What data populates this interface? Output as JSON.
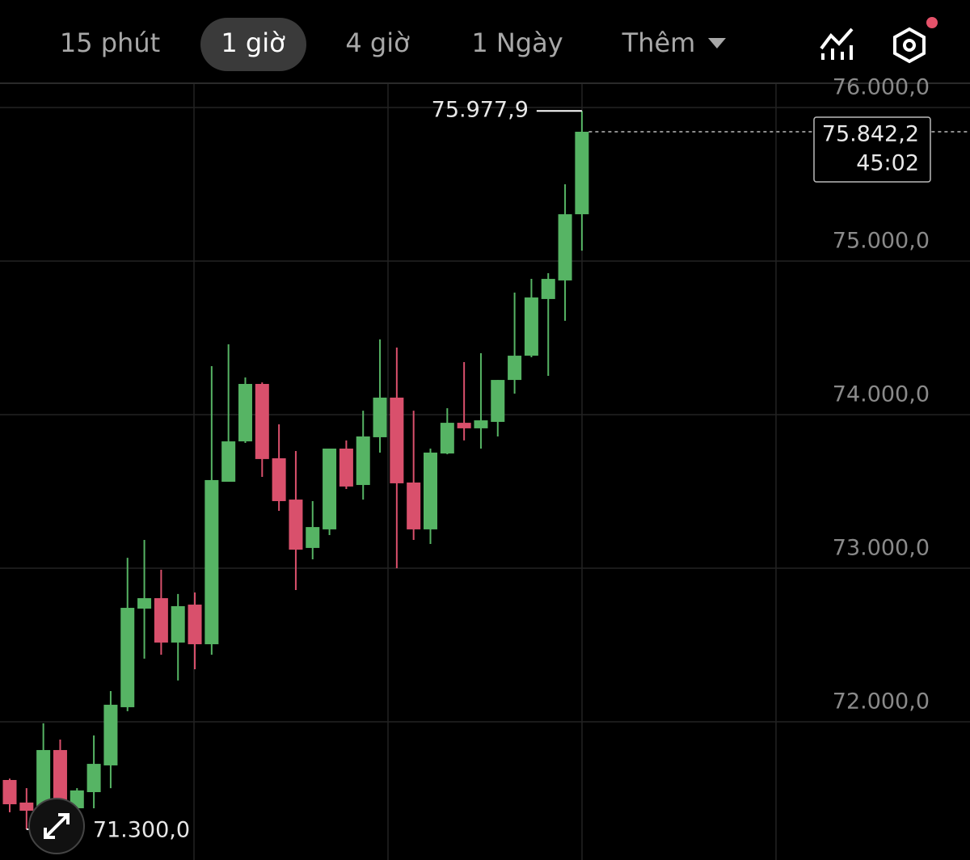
{
  "toolbar": {
    "tabs": [
      "15 phút",
      "1 giờ",
      "4 giờ",
      "1 Ngày"
    ],
    "more": "Thêm"
  },
  "chart_data": {
    "type": "candlestick",
    "open": [
      71621,
      71474,
      71332,
      71816,
      71437,
      71542,
      71716,
      72095,
      72737,
      72805,
      72516,
      72763,
      72505,
      73563,
      73826,
      74200,
      73716,
      73447,
      73132,
      73253,
      73779,
      73542,
      73853,
      74111,
      73558,
      73253,
      73747,
      73947,
      73911,
      73953,
      74226,
      74384,
      74753,
      74874,
      75305
    ],
    "high": [
      71630,
      71568,
      71990,
      71884,
      71568,
      71911,
      72200,
      73068,
      73184,
      72990,
      72832,
      72842,
      74316,
      74458,
      74242,
      74210,
      73937,
      73763,
      73437,
      73779,
      73832,
      74026,
      74490,
      74437,
      74026,
      73779,
      74042,
      74342,
      74400,
      74226,
      74795,
      74884,
      74921,
      75500,
      75977.9
    ],
    "low": [
      71411,
      71300,
      71320,
      71384,
      71411,
      71437,
      71568,
      72069,
      72411,
      72437,
      72269,
      72342,
      72437,
      73563,
      73816,
      73595,
      73374,
      72858,
      73058,
      73216,
      73516,
      73447,
      73753,
      73000,
      73184,
      73158,
      73742,
      73832,
      73779,
      73858,
      74137,
      74374,
      74253,
      74611,
      75068
    ],
    "close": [
      71463,
      71421,
      71816,
      71437,
      71553,
      71726,
      72111,
      72742,
      72805,
      72516,
      72753,
      72505,
      73574,
      73826,
      74200,
      73711,
      73437,
      73121,
      73268,
      73779,
      73532,
      73858,
      74111,
      73553,
      73253,
      73753,
      73947,
      73911,
      73963,
      74226,
      74384,
      74763,
      74884,
      75305,
      75842.2
    ],
    "up_color": "#56b464",
    "down_color": "#d9506c",
    "ylim": [
      71100,
      76158
    ],
    "yticks": [
      {
        "value": 72000,
        "label": "72.000,0"
      },
      {
        "value": 73000,
        "label": "73.000,0"
      },
      {
        "value": 74000,
        "label": "74.000,0"
      },
      {
        "value": 75000,
        "label": "75.000,0"
      },
      {
        "value": 76000,
        "label": "76.000,0"
      }
    ],
    "grid": true,
    "max_label": "75.977,9",
    "min_label": "71.300,0",
    "last_price_label": "75.842,2",
    "countdown": "45:02"
  }
}
